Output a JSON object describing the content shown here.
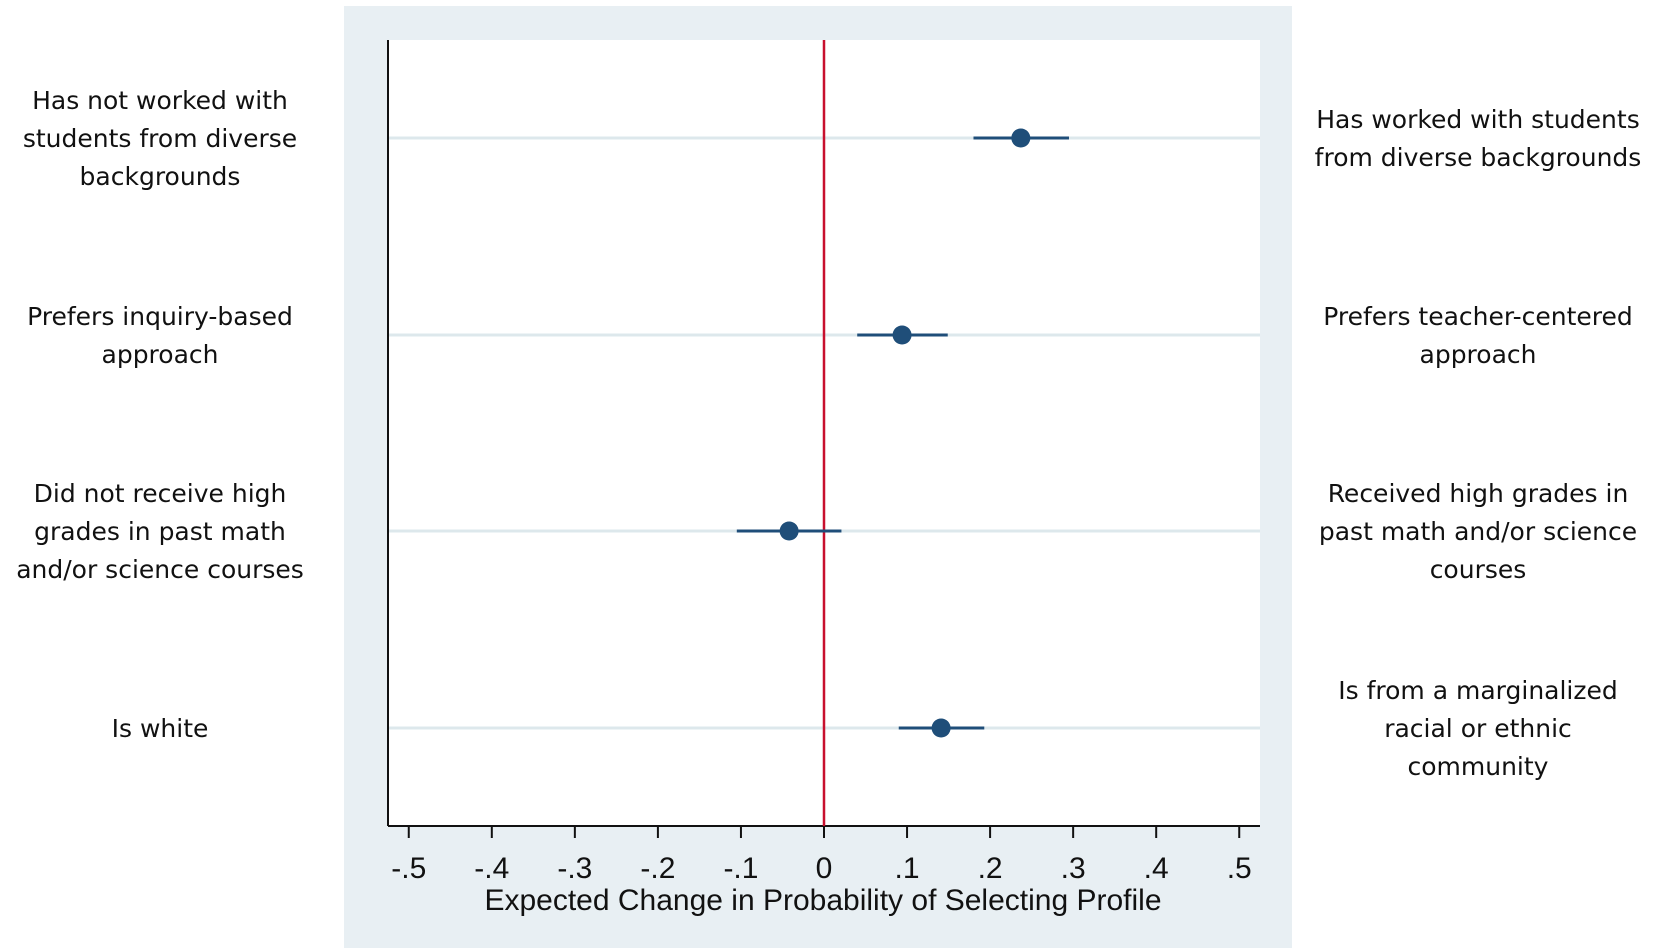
{
  "chart_data": {
    "type": "scatter",
    "title": "",
    "xlabel": "Expected Change in Probability of Selecting Profile",
    "ylabel": "",
    "xlim": [
      -0.525,
      0.525
    ],
    "xticks": [
      -0.5,
      -0.4,
      -0.3,
      -0.2,
      -0.1,
      0,
      0.1,
      0.2,
      0.3,
      0.4,
      0.5
    ],
    "xtick_labels": [
      "-.5",
      "-.4",
      "-.3",
      "-.2",
      "-.1",
      "0",
      ".1",
      ".2",
      ".3",
      ".4",
      ".5"
    ],
    "reference_line": {
      "x": 0,
      "color": "#c8102e"
    },
    "grid": "horizontal",
    "colors": {
      "point": "#1f4e79",
      "plot_region_background": "#e8eff3",
      "gridline": "#dde8ec"
    },
    "points": [
      {
        "left_label": [
          "Has not worked with",
          "students from diverse",
          "backgrounds"
        ],
        "right_label": [
          "Has worked with students",
          "from diverse backgrounds"
        ],
        "estimate": 0.237,
        "ci": [
          0.18,
          0.295
        ]
      },
      {
        "left_label": [
          "Prefers inquiry-based",
          "approach"
        ],
        "right_label": [
          "Prefers teacher-centered",
          "approach"
        ],
        "estimate": 0.094,
        "ci": [
          0.04,
          0.149
        ]
      },
      {
        "left_label": [
          "Did not receive high",
          "grades in past math",
          "and/or science courses"
        ],
        "right_label": [
          "Received high grades in",
          "past math and/or science",
          "courses"
        ],
        "estimate": -0.042,
        "ci": [
          -0.105,
          0.021
        ]
      },
      {
        "left_label": [
          "Is white"
        ],
        "right_label": [
          "Is from a marginalized",
          "racial or ethnic",
          "community"
        ],
        "estimate": 0.141,
        "ci": [
          0.09,
          0.193
        ]
      }
    ]
  }
}
